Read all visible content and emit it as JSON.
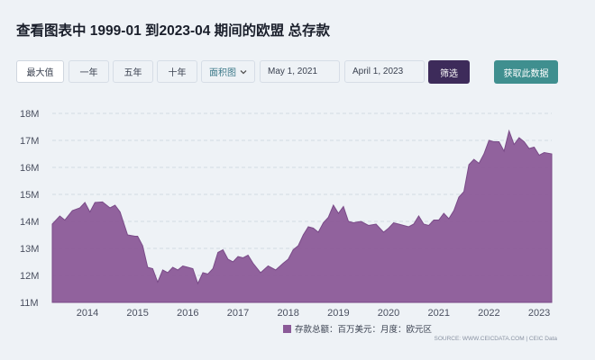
{
  "title": "查看图表中 1999-01 到2023-04 期间的欧盟 总存款",
  "toolbar": {
    "range_buttons": [
      "最大值",
      "一年",
      "五年",
      "十年"
    ],
    "chart_type": "面积图",
    "start_date": "May 1, 2021",
    "end_date": "April 1, 2023",
    "filter_label": "筛选",
    "get_data_label": "获取此数据"
  },
  "colors": {
    "area_fill": "#8b5a98",
    "area_stroke": "#7a4b88",
    "filter_button": "#3d2b5a",
    "get_data_button": "#3f8f8f",
    "background": "#eef2f6"
  },
  "chart_data": {
    "type": "area",
    "y_ticks": [
      "11M",
      "12M",
      "13M",
      "14M",
      "15M",
      "16M",
      "17M",
      "18M"
    ],
    "ylim": [
      11,
      18
    ],
    "x_ticks": [
      "2014",
      "2015",
      "2016",
      "2017",
      "2018",
      "2019",
      "2020",
      "2021",
      "2022",
      "2023"
    ],
    "xlim": [
      2013.3,
      2023.25
    ],
    "grid": "horizontal-dashed",
    "legend": "存款总额：百万美元：月度：欧元区",
    "legend_position": "bottom-right",
    "source": "SOURCE: WWW.CEICDATA.COM | CEIC Data",
    "series": [
      {
        "name": "存款总额：百万美元：月度：欧元区",
        "x": [
          2013.3,
          2013.45,
          2013.55,
          2013.7,
          2013.85,
          2013.95,
          2014.05,
          2014.15,
          2014.3,
          2014.45,
          2014.55,
          2014.65,
          2014.8,
          2014.95,
          2015.0,
          2015.1,
          2015.2,
          2015.3,
          2015.4,
          2015.5,
          2015.6,
          2015.7,
          2015.8,
          2015.9,
          2016.0,
          2016.1,
          2016.2,
          2016.3,
          2016.4,
          2016.5,
          2016.6,
          2016.7,
          2016.8,
          2016.9,
          2017.0,
          2017.1,
          2017.2,
          2017.3,
          2017.45,
          2017.6,
          2017.75,
          2017.9,
          2018.0,
          2018.1,
          2018.2,
          2018.3,
          2018.4,
          2018.5,
          2018.6,
          2018.7,
          2018.8,
          2018.9,
          2019.0,
          2019.1,
          2019.2,
          2019.3,
          2019.45,
          2019.6,
          2019.75,
          2019.9,
          2020.0,
          2020.1,
          2020.2,
          2020.3,
          2020.4,
          2020.5,
          2020.6,
          2020.7,
          2020.8,
          2020.9,
          2021.0,
          2021.1,
          2021.2,
          2021.3,
          2021.4,
          2021.5,
          2021.6,
          2021.7,
          2021.8,
          2021.9,
          2022.0,
          2022.1,
          2022.2,
          2022.3,
          2022.4,
          2022.5,
          2022.6,
          2022.7,
          2022.8,
          2022.9,
          2023.0,
          2023.1,
          2023.25
        ],
        "values": [
          13.9,
          14.2,
          14.05,
          14.4,
          14.5,
          14.7,
          14.35,
          14.7,
          14.72,
          14.5,
          14.6,
          14.35,
          13.5,
          13.45,
          13.45,
          13.1,
          12.3,
          12.25,
          11.75,
          12.2,
          12.1,
          12.3,
          12.2,
          12.35,
          12.3,
          12.25,
          11.7,
          12.1,
          12.05,
          12.25,
          12.85,
          12.95,
          12.6,
          12.5,
          12.7,
          12.65,
          12.75,
          12.45,
          12.1,
          12.35,
          12.2,
          12.45,
          12.6,
          12.95,
          13.1,
          13.5,
          13.8,
          13.75,
          13.6,
          13.95,
          14.15,
          14.6,
          14.3,
          14.55,
          14.0,
          13.95,
          14.0,
          13.85,
          13.9,
          13.6,
          13.75,
          13.95,
          13.9,
          13.85,
          13.8,
          13.9,
          14.2,
          13.9,
          13.85,
          14.05,
          14.05,
          14.3,
          14.1,
          14.4,
          14.9,
          15.1,
          16.1,
          16.3,
          16.15,
          16.5,
          17.0,
          16.95,
          16.95,
          16.6,
          17.35,
          16.85,
          17.1,
          16.95,
          16.7,
          16.75,
          16.45,
          16.55,
          16.5
        ]
      }
    ]
  }
}
